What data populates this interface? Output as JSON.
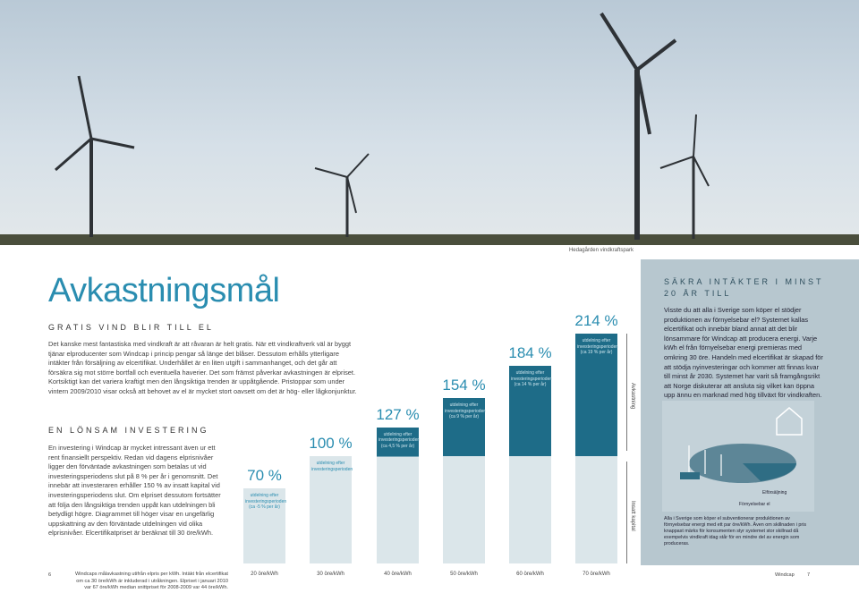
{
  "photo": {
    "caption": "Hedagården vindkraftspark"
  },
  "left": {
    "title": "Avkastningsmål",
    "section1": {
      "heading": "GRATIS VIND BLIR TILL EL",
      "body": "Det kanske mest fantastiska med vindkraft är att råvaran är helt gratis. När ett vindkraftverk väl är byggt tjänar elproducenter som Windcap i princip pengar så länge det blåser. Dessutom erhålls ytterligare intäkter från försäljning av elcertifikat. Underhållet är en liten utgift i sammanhanget, och det går att försäkra sig mot större bortfall och eventuella haverier. Det som främst påverkar avkastningen är elpriset. Kortsiktigt kan det variera kraftigt men den långsiktiga trenden är uppåtgående. Pristoppar som under vintern 2009/2010 visar också att behovet av el är mycket stort oavsett om det är hög- eller lågkonjunktur."
    },
    "section2": {
      "heading": "EN LÖNSAM INVESTERING",
      "body": "En investering i Windcap är mycket intressant även ur ett rent finansiellt perspektiv. Redan vid dagens elprisnivåer ligger den förväntade avkastningen som betalas ut vid investeringsperiodens slut på 8 % per år i genomsnitt. Det innebär att investeraren erhåller 150 % av insatt kapital vid investeringsperiodens slut. Om elpriset dessutom fortsätter att följa den långsiktiga trenden uppåt kan utdelningen bli betydligt högre. Diagrammet till höger visar en ungefärlig uppskattning av den förväntade utdelningen vid olika elprisnivåer. Elcertifikatpriset är beräknat till 30 öre/kWh."
    }
  },
  "chart": {
    "bars": [
      {
        "value": 70,
        "label": "70 %",
        "note": "utdelning efter investeringsperioden (ca -5 % per år)",
        "price": "20 öre/kWh"
      },
      {
        "value": 100,
        "label": "100 %",
        "note": "utdelning efter investeringsperioden",
        "price": "30 öre/kWh"
      },
      {
        "value": 127,
        "label": "127 %",
        "note": "utdelning efter investeringsperioden (ca 4,5 % per år)",
        "price": "40 öre/kWh"
      },
      {
        "value": 154,
        "label": "154 %",
        "note": "utdelning efter investeringsperioden (ca 9 % per år)",
        "price": "50 öre/kWh"
      },
      {
        "value": 184,
        "label": "184 %",
        "note": "utdelning efter investeringsperioden (ca 14 % per år)",
        "price": "60 öre/kWh"
      },
      {
        "value": 214,
        "label": "214 %",
        "note": "utdelning efter investeringsperioden (ca 19 % per år)",
        "price": "70 öre/kWh"
      }
    ],
    "upper_label": "Avkastning",
    "lower_label": "Insatt kapital"
  },
  "right": {
    "heading": "SÄKRA INTÄKTER I MINST 20 ÅR TILL",
    "body": "Visste du att alla i Sverige som köper el stödjer produktionen av förnyelsebar el? Systemet kallas elcertifikat och innebär bland annat att det blir lönsammare för Windcap att producera energi. Varje kWh el från förnyelsebar energi premieras med omkring 30 öre. Handeln med elcertifikat är skapad för att stödja nyinvesteringar och kommer att finnas kvar till minst år 2030. Systemet har varit så framgångsrikt att Norge diskuterar att ansluta sig vilket kan öppna upp ännu en marknad med hög tillväxt för vindkraften.",
    "diagram_label1": "Elförsäljning",
    "diagram_label2": "Förnyelsebar el",
    "caption": "Alla i Sverige som köper el subventionerar produktionen av förnyelsebar energi med ett par öre/kWh. Även om skillnaden i pris knappast märks för konsumenten styr systemet stor skillnad då exempelvis vindkraft idag står för en mindre del av energin som produceras."
  },
  "footer": {
    "page_left": "6",
    "note": "Windcaps målavkastning utifrån elpris per kWh. Intäkt från elcertifikat om ca 30 öre/kWh är inkluderad i utråkningen. Elpriset i januari 2010 var 67 öre/kWh median snittpriset för 2008-2009 var 44 öre/kWh.",
    "brand": "Windcap",
    "page_right": "7"
  }
}
